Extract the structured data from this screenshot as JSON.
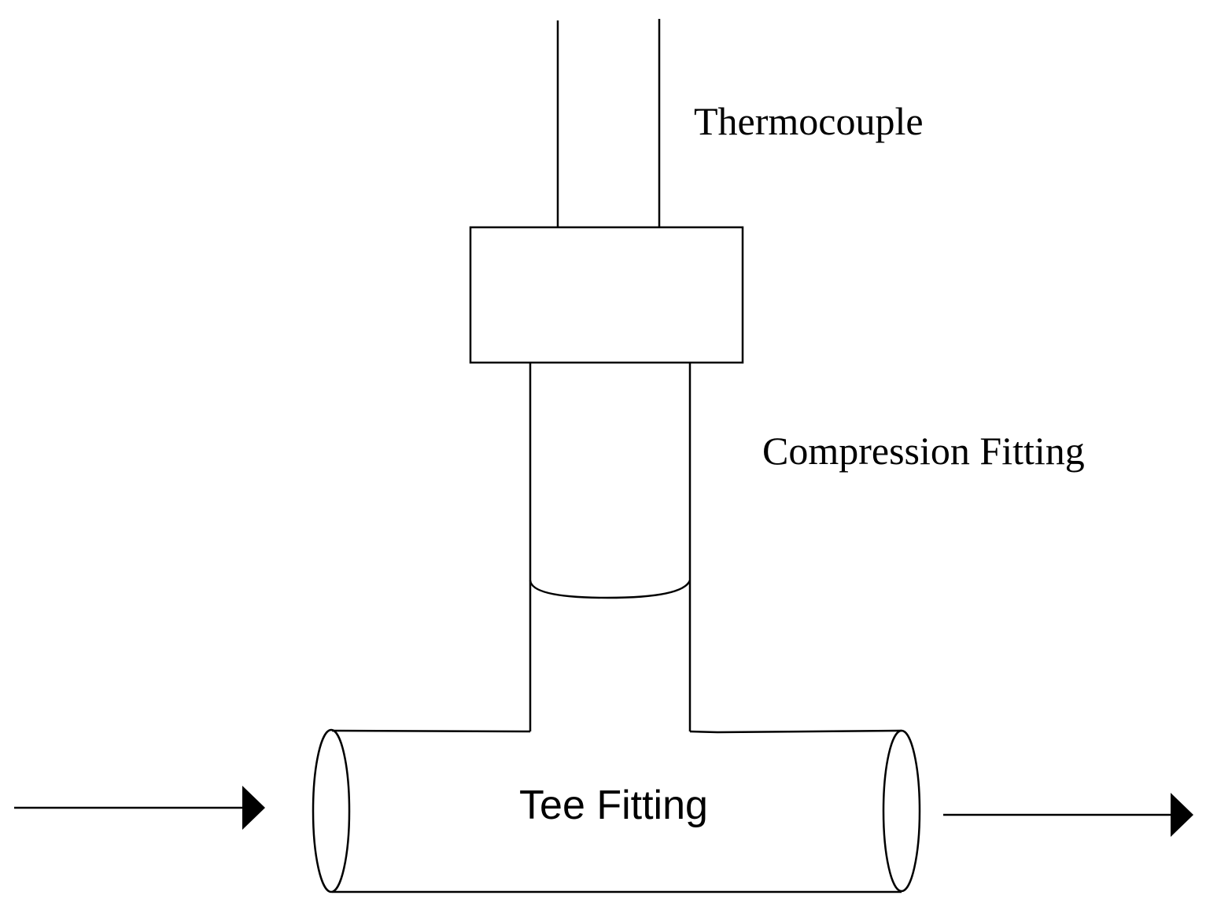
{
  "labels": {
    "thermocouple": "Thermocouple",
    "compression_fitting": "Compression Fitting",
    "tee_fitting": "Tee Fitting"
  },
  "colors": {
    "line": "#000000",
    "background": "#ffffff"
  }
}
